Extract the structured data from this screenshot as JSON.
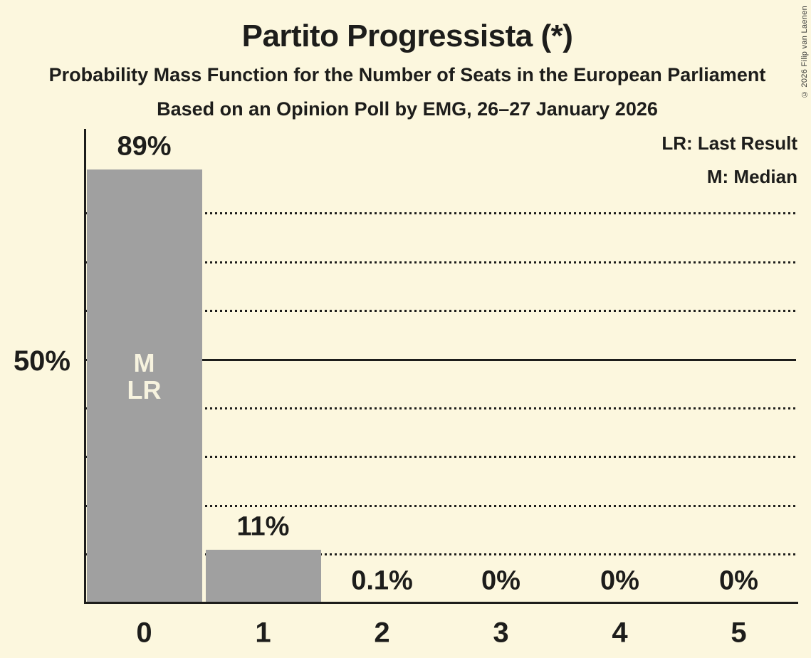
{
  "title": "Partito Progressista (*)",
  "subtitle1": "Probability Mass Function for the Number of Seats in the European Parliament",
  "subtitle2": "Based on an Opinion Poll by EMG, 26–27 January 2026",
  "copyright": "© 2026 Filip van Laenen",
  "legend": {
    "lr": "LR: Last Result",
    "m": "M: Median"
  },
  "y_axis": {
    "label_50": "50%"
  },
  "colors": {
    "background": "#FCF7DE",
    "bar": "#A0A0A0",
    "text": "#1D1D1B",
    "bar_annotation_text": "#F7F3DF"
  },
  "chart_data": {
    "type": "bar",
    "title": "Partito Progressista (*)",
    "categories": [
      "0",
      "1",
      "2",
      "3",
      "4",
      "5"
    ],
    "values": [
      89,
      11,
      0.1,
      0,
      0,
      0
    ],
    "value_labels": [
      "89%",
      "11%",
      "0.1%",
      "0%",
      "0%",
      "0%"
    ],
    "series_name": "Probability of number of seats",
    "ylabel": "",
    "xlabel": "",
    "ylim_pct": [
      0,
      97
    ],
    "gridline_interval_pct": 10,
    "solid_gridline_pct": 50,
    "gridlines_drawn_pct": [
      10,
      20,
      30,
      40,
      50,
      60,
      70,
      80
    ],
    "legend_position": "top-right",
    "grid": "dotted-horizontal",
    "median_bar_index": 0,
    "last_result_bar_index": 0,
    "annotations": [
      {
        "bar_index": 0,
        "lines": [
          "M",
          "LR"
        ]
      }
    ]
  }
}
